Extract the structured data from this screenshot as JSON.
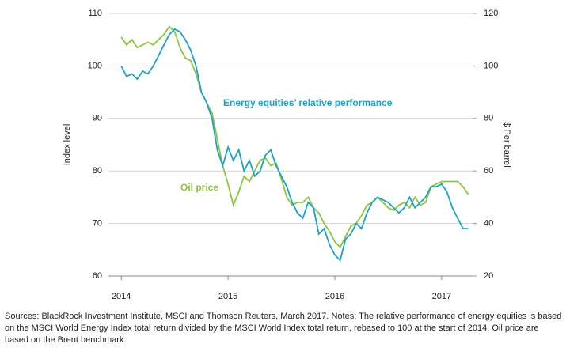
{
  "chart_data": {
    "type": "line",
    "y_label": "Index level",
    "y2_label": "$ Per barrel",
    "annotations": [
      "Energy equities’ relative performance",
      "Oil price"
    ],
    "note": "Sources: BlackRock Investment Institute, MSCI and Thomson Reuters, March 2017.  Notes: The relative performance of energy equities is based on the MSCI World Energy Index total return divided by the MSCI World Index total return, rebased to 100 at the start of 2014.  Oil price are based on the Brent benchmark.",
    "x": [
      2014.0,
      2014.05,
      2014.1,
      2014.15,
      2014.2,
      2014.25,
      2014.3,
      2014.35,
      2014.4,
      2014.45,
      2014.5,
      2014.55,
      2014.6,
      2014.65,
      2014.7,
      2014.75,
      2014.8,
      2014.85,
      2014.9,
      2014.95,
      2015.0,
      2015.05,
      2015.1,
      2015.15,
      2015.2,
      2015.25,
      2015.3,
      2015.35,
      2015.4,
      2015.45,
      2015.5,
      2015.55,
      2015.6,
      2015.65,
      2015.7,
      2015.75,
      2015.8,
      2015.85,
      2015.9,
      2015.95,
      2016.0,
      2016.05,
      2016.1,
      2016.15,
      2016.2,
      2016.25,
      2016.3,
      2016.35,
      2016.4,
      2016.45,
      2016.5,
      2016.55,
      2016.6,
      2016.65,
      2016.7,
      2016.75,
      2016.8,
      2016.85,
      2016.9,
      2016.95,
      2017.0,
      2017.05,
      2017.1,
      2017.15,
      2017.2,
      2017.25
    ],
    "series": [
      {
        "name": "Energy equities’ relative performance",
        "color": "#1aa3c8",
        "values": [
          100,
          98,
          98.5,
          97.5,
          99,
          98.5,
          100,
          102,
          104,
          106,
          107,
          106.5,
          105,
          103,
          100,
          95,
          93,
          90,
          84,
          81,
          84.5,
          82,
          84,
          80,
          82,
          79,
          80,
          83,
          84,
          81,
          79,
          77,
          74,
          72,
          71,
          74,
          73,
          68,
          69,
          66,
          64,
          63,
          67,
          68,
          70,
          69,
          72,
          74,
          75,
          74.5,
          74,
          73,
          72,
          73,
          75,
          73,
          74,
          75,
          77,
          77,
          77.5,
          76,
          73,
          71,
          69,
          69
        ]
      },
      {
        "name": "Oil price",
        "color": "#8dc63f",
        "axis": "y2",
        "values": [
          111,
          108,
          110,
          107,
          108,
          109,
          108,
          110,
          112,
          115,
          113,
          107,
          103,
          102,
          97,
          90,
          86,
          82,
          72,
          62,
          55,
          47,
          52,
          58,
          56,
          60,
          64,
          65,
          62,
          63,
          57,
          50,
          47,
          48,
          48,
          50,
          46,
          44,
          40,
          37,
          33,
          31,
          35,
          39,
          40,
          43,
          47,
          48,
          50,
          48,
          46,
          45,
          47,
          48,
          46,
          50,
          47,
          48,
          54,
          55,
          56,
          56,
          56,
          56,
          54,
          51
        ]
      }
    ],
    "xlim": [
      2013.88,
      2017.29
    ],
    "xticks": [
      2014,
      2015,
      2016,
      2017
    ],
    "ylim": [
      60,
      110
    ],
    "yticks": [
      60,
      70,
      80,
      90,
      100,
      110
    ],
    "y2lim": [
      20,
      120
    ],
    "y2ticks": [
      20,
      40,
      60,
      80,
      100,
      120
    ],
    "grid": true
  }
}
